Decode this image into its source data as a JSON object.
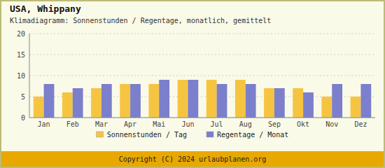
{
  "chart_data": {
    "type": "bar",
    "title": "USA,  Whippany",
    "subtitle": "Klimadiagramm: Sonnenstunden / Regentage, monatlich, gemittelt",
    "categories": [
      "Jan",
      "Feb",
      "Mar",
      "Apr",
      "Mai",
      "Jun",
      "Jul",
      "Aug",
      "Sep",
      "Okt",
      "Nov",
      "Dez"
    ],
    "series": [
      {
        "name": "Sonnenstunden / Tag",
        "color": "#F5C542",
        "values": [
          5,
          6,
          7,
          8,
          8,
          9,
          9,
          9,
          7,
          7,
          5,
          5
        ]
      },
      {
        "name": "Regentage / Monat",
        "color": "#7B7FCC",
        "values": [
          8,
          7,
          8,
          8,
          9,
          9,
          8,
          8,
          7,
          6,
          8,
          8
        ]
      }
    ],
    "ylim": [
      0,
      20
    ],
    "yticks": [
      0,
      5,
      10,
      15,
      20
    ],
    "grid": true,
    "legend": "bottom",
    "annotations": [
      "Copyright (C) 2024 urlaubplanen.org"
    ]
  }
}
